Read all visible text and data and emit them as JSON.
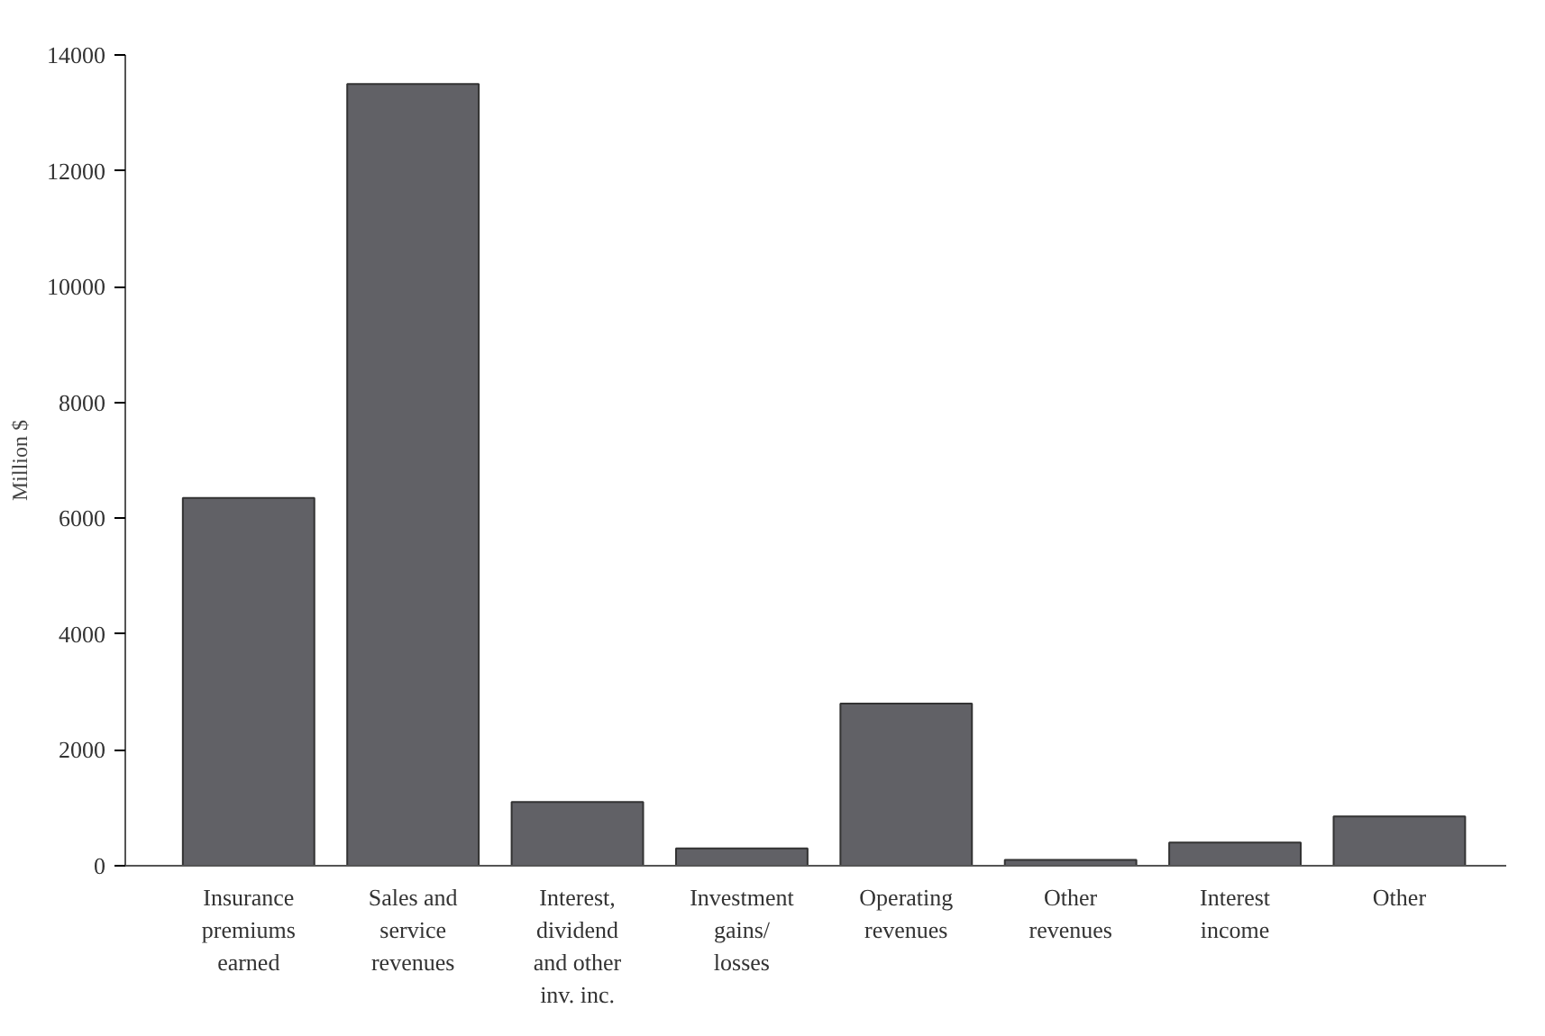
{
  "chart_data": {
    "type": "bar",
    "ylabel": "Million $",
    "categories": [
      "Insurance\npremiums\nearned",
      "Sales and\nservice\nrevenues",
      "Interest,\ndividend\nand other\ninv. inc.",
      "Investment\ngains/\nlosses",
      "Operating\nrevenues",
      "Other\nrevenues",
      "Interest\nincome",
      "Other"
    ],
    "values": [
      6350,
      13500,
      1100,
      300,
      2800,
      100,
      400,
      850
    ],
    "color": "#616166",
    "ylim": [
      0,
      14000
    ],
    "yticks": [
      0,
      2000,
      4000,
      6000,
      8000,
      10000,
      12000,
      14000
    ],
    "grid": false
  }
}
